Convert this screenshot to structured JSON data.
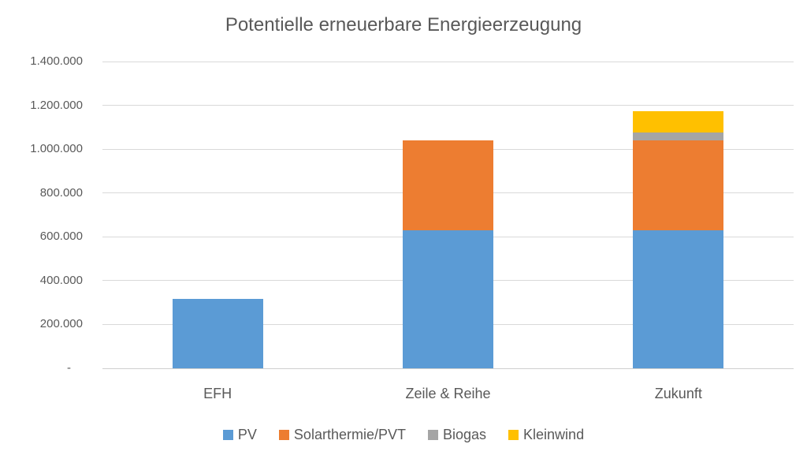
{
  "chart_data": {
    "type": "bar",
    "stacked": true,
    "title": "Potentielle erneuerbare Energieerzeugung",
    "categories": [
      "EFH",
      "Zeile & Reihe",
      "Zukunft"
    ],
    "series": [
      {
        "name": "PV",
        "color": "#5B9BD5",
        "values": [
          318000,
          630000,
          630000
        ]
      },
      {
        "name": "Solarthermie/PVT",
        "color": "#ED7D31",
        "values": [
          0,
          410000,
          410000
        ]
      },
      {
        "name": "Biogas",
        "color": "#A5A5A5",
        "values": [
          0,
          0,
          36000
        ]
      },
      {
        "name": "Kleinwind",
        "color": "#FFC000",
        "values": [
          0,
          0,
          96000
        ]
      }
    ],
    "ylim": [
      0,
      1400000
    ],
    "y_ticks": [
      {
        "value": 1400000,
        "label": "1.400.000"
      },
      {
        "value": 1200000,
        "label": "1.200.000"
      },
      {
        "value": 1000000,
        "label": "1.000.000"
      },
      {
        "value": 800000,
        "label": "800.000"
      },
      {
        "value": 600000,
        "label": "600.000"
      },
      {
        "value": 400000,
        "label": "400.000"
      },
      {
        "value": 200000,
        "label": "200.000"
      },
      {
        "value": 0,
        "label": "-"
      }
    ],
    "grid": true,
    "legend_position": "bottom",
    "colors": {
      "text": "#595959",
      "gridline": "#D9D9D9",
      "background": "#FFFFFF"
    }
  }
}
